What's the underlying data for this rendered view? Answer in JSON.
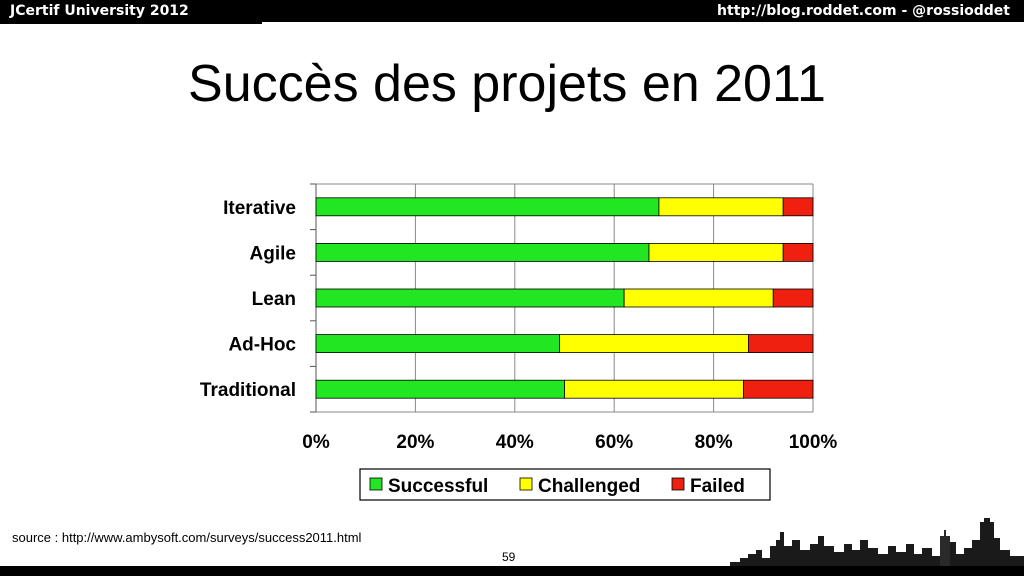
{
  "header": {
    "left_text": "JCertif University 2012",
    "right_text": "http://blog.roddet.com  -  @rossioddet"
  },
  "slide": {
    "title": "Succès des projets en 2011",
    "source": "source : http://www.ambysoft.com/surveys/success2011.html",
    "page_number": "59"
  },
  "colors": {
    "successful": "#22e622",
    "challenged": "#ffff00",
    "failed": "#f02010"
  },
  "chart_data": {
    "type": "bar",
    "orientation": "horizontal",
    "stacked": true,
    "categories": [
      "Iterative",
      "Agile",
      "Lean",
      "Ad-Hoc",
      "Traditional"
    ],
    "series": [
      {
        "name": "Successful",
        "values": [
          69,
          67,
          62,
          49,
          50
        ]
      },
      {
        "name": "Challenged",
        "values": [
          25,
          27,
          30,
          38,
          36
        ]
      },
      {
        "name": "Failed",
        "values": [
          6,
          6,
          8,
          13,
          14
        ]
      }
    ],
    "xlim": [
      0,
      100
    ],
    "xticks": [
      "0%",
      "20%",
      "40%",
      "60%",
      "80%",
      "100%"
    ],
    "grid": true,
    "legend_position": "bottom"
  }
}
